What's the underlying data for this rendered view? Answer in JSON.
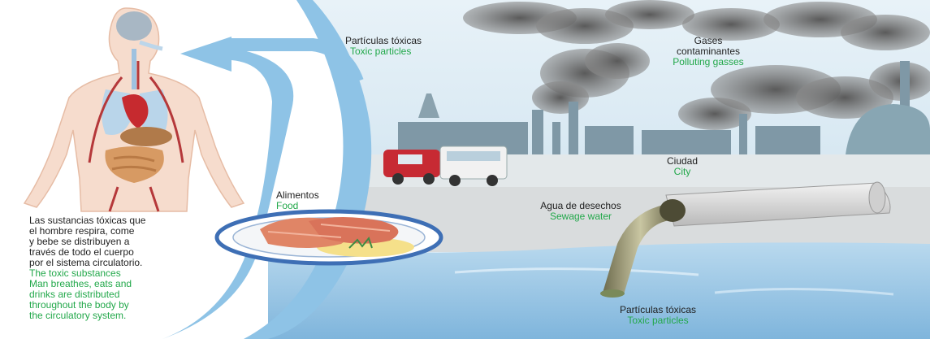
{
  "labels": {
    "toxic_particles_air": {
      "es": "Partículas tóxicas",
      "en": "Toxic particles"
    },
    "gases": {
      "es_line1": "Gases",
      "es_line2": "contaminantes",
      "en": "Polluting gasses"
    },
    "city": {
      "es": "Ciudad",
      "en": "City"
    },
    "food": {
      "es": "Alimentos",
      "en": "Food"
    },
    "sewage": {
      "es": "Agua de desechos",
      "en": "Sewage water"
    },
    "toxic_particles_water": {
      "es": "Partículas tóxicas",
      "en": "Toxic particles"
    }
  },
  "human_caption": {
    "es_lines": [
      "Las sustancias tóxicas que",
      "el hombre respira, come",
      "y bebe se distribuyen a",
      "través de todo el cuerpo",
      "por el sistema circulatorio."
    ],
    "en_lines": [
      "The toxic substances",
      "Man breathes, eats and",
      "drinks are distributed",
      "throughout the body by",
      "the circulatory system."
    ]
  },
  "colors": {
    "spanish_text": "#1f1f1f",
    "english_text": "#22a84a",
    "flow_arrow": "#8ec3e6",
    "sky": "#dcecf5",
    "smoke": "#6b6b6b",
    "water": "#9cc7e6"
  }
}
